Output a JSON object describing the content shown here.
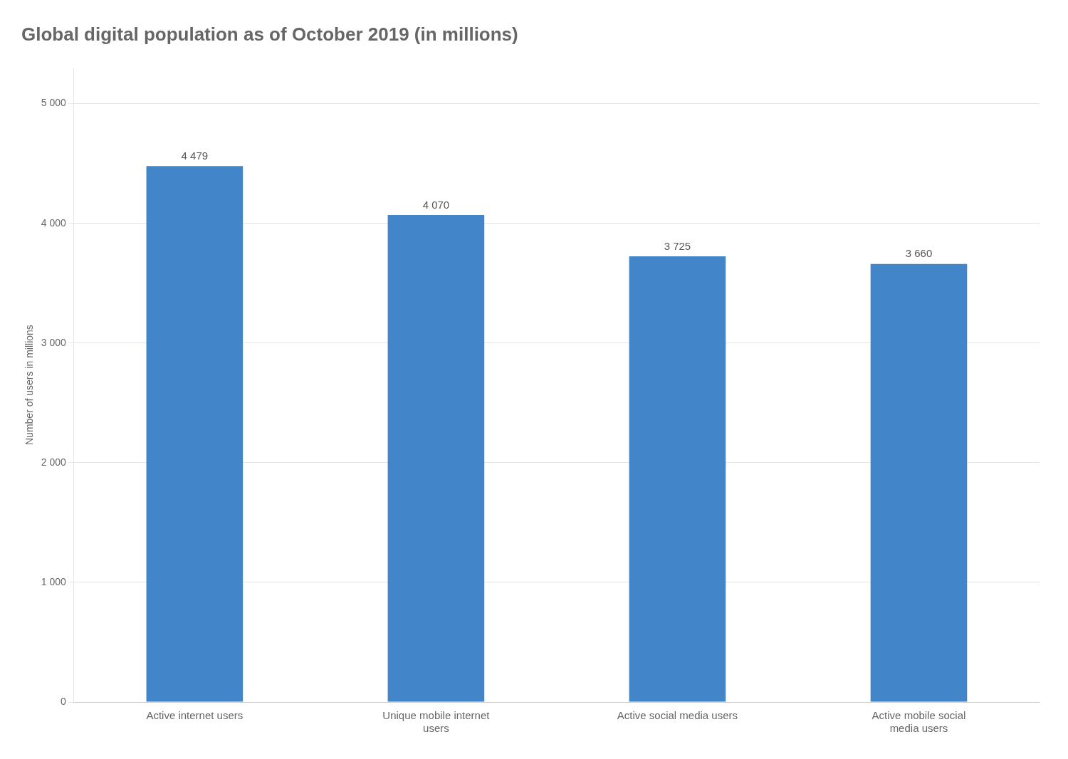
{
  "chart_data": {
    "type": "bar",
    "title": "Global digital population as of October 2019 (in millions)",
    "categories": [
      "Active internet users",
      "Unique mobile internet\nusers",
      "Active social media users",
      "Active mobile social\nmedia users"
    ],
    "values": [
      4479,
      4070,
      3725,
      3660
    ],
    "value_labels": [
      "4 479",
      "4 070",
      "3 725",
      "3 660"
    ],
    "data_labels": true,
    "color": "#4285c8",
    "ylabel": "Number of users in millions",
    "ylim": [
      0,
      5300
    ],
    "yticks": [
      0,
      {
        "value": 1000,
        "label": "1 000"
      },
      {
        "value": 2000,
        "label": "2 000"
      },
      {
        "value": 3000,
        "label": "3 000"
      },
      {
        "value": 4000,
        "label": "4 000"
      },
      {
        "value": 5000,
        "label": "5 000"
      }
    ],
    "grid": true
  }
}
